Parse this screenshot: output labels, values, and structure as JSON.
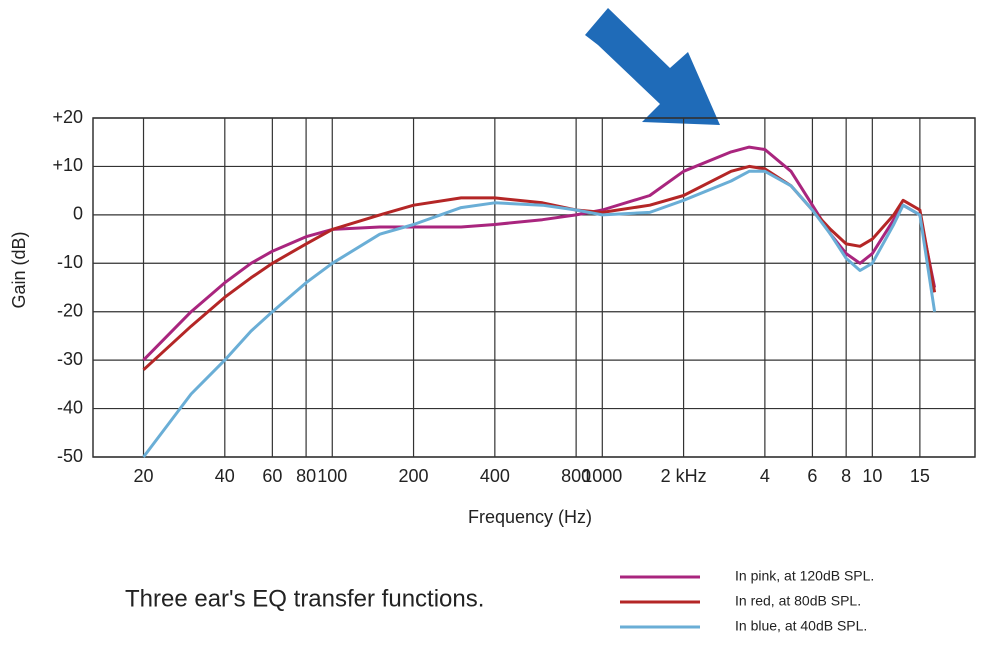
{
  "chart_data": {
    "type": "line",
    "xlabel": "Frequency (Hz)",
    "ylabel": "Gain (dB)",
    "caption": "Three ear's EQ transfer functions.",
    "xscale": "log",
    "grid": true,
    "legend": "lower right",
    "xlim": [
      13,
      24000
    ],
    "ylim": [
      -50,
      20
    ],
    "xticks": [
      20,
      40,
      60,
      80,
      100,
      200,
      400,
      800,
      1000,
      {
        "value": 2000,
        "label": "2 kHz"
      },
      {
        "value": 4000,
        "label": "4"
      },
      {
        "value": 6000,
        "label": "6"
      },
      {
        "value": 8000,
        "label": "8"
      },
      {
        "value": 10000,
        "label": "10"
      },
      {
        "value": 15000,
        "label": "15"
      }
    ],
    "yticks": [
      {
        "value": 20,
        "label": "+20"
      },
      {
        "value": 10,
        "label": "+10"
      },
      0,
      -10,
      -20,
      -30,
      -40,
      -50
    ],
    "x": [
      20,
      30,
      40,
      50,
      60,
      80,
      100,
      150,
      200,
      300,
      400,
      600,
      800,
      1000,
      1500,
      2000,
      3000,
      3500,
      4000,
      5000,
      6000,
      7000,
      8000,
      9000,
      10000,
      12000,
      13000,
      15000,
      17000
    ],
    "series": [
      {
        "name": "In pink, at 120dB SPL.",
        "color": "#a9257e",
        "values": [
          -30,
          -20,
          -14,
          -10,
          -7.5,
          -4.5,
          -3,
          -2.5,
          -2.5,
          -2.5,
          -2,
          -1,
          0,
          1,
          4,
          9,
          13,
          14,
          13.5,
          9,
          2,
          -4,
          -8,
          -10,
          -8,
          -1,
          2,
          0,
          -15
        ]
      },
      {
        "name": "In red, at 80dB SPL.",
        "color": "#b42626",
        "values": [
          -32,
          -23,
          -17,
          -13,
          -10,
          -6,
          -3,
          0,
          2,
          3.5,
          3.5,
          2.5,
          1,
          0.5,
          2,
          4,
          9,
          10,
          9.5,
          6,
          1,
          -3,
          -6,
          -6.5,
          -5,
          0,
          3,
          1,
          -16
        ]
      },
      {
        "name": "In blue, at 40dB SPL.",
        "color": "#6aaed6",
        "values": [
          -50,
          -37,
          -30,
          -24,
          -20,
          -14,
          -10,
          -4,
          -2,
          1.5,
          2.5,
          2,
          1,
          0,
          0.5,
          3,
          7,
          9,
          9,
          6,
          1,
          -4,
          -9,
          -11.5,
          -10,
          -2,
          2,
          0,
          -20
        ]
      }
    ]
  }
}
